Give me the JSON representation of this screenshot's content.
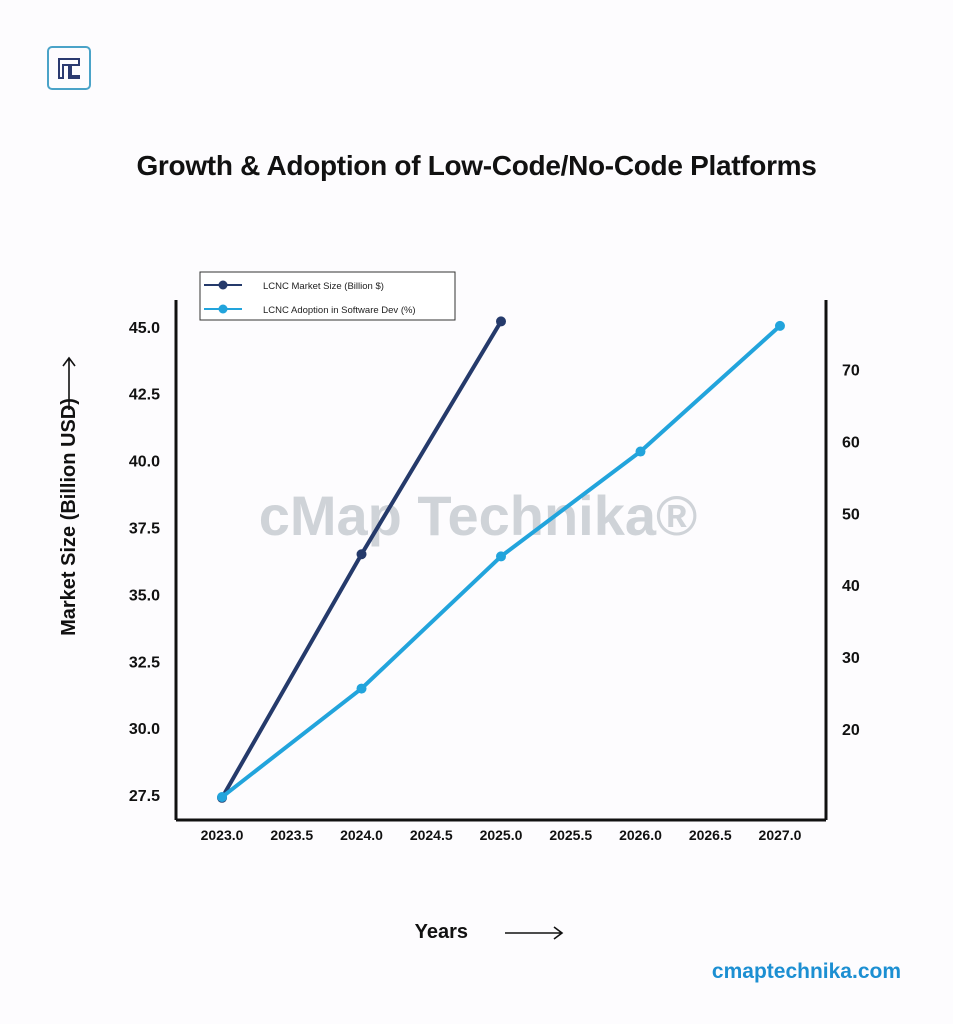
{
  "title": "Growth & Adoption of Low-Code/No-Code Platforms",
  "footer": "cmaptechnika.com",
  "watermark": "cMap Technika®",
  "logo_icon": "t-logo-icon",
  "chart_data": {
    "type": "line",
    "title": "Growth & Adoption of Low-Code/No-Code Platforms",
    "xlabel": "Years",
    "ylabel": "Market Size (Billion USD)",
    "y2label": "",
    "xlim": [
      2022.67,
      2027.33
    ],
    "ylim": [
      26.57,
      46.0
    ],
    "y2lim": [
      7.3,
      79.7
    ],
    "xticks": [
      "2023.0",
      "2023.5",
      "2024.0",
      "2024.5",
      "2025.0",
      "2025.5",
      "2026.0",
      "2026.5",
      "2027.0"
    ],
    "yticks": [
      "27.5",
      "30.0",
      "32.5",
      "35.0",
      "37.5",
      "40.0",
      "42.5",
      "45.0"
    ],
    "y2ticks": [
      "20",
      "30",
      "40",
      "50",
      "60",
      "70"
    ],
    "grid": false,
    "legend_position": "top-left",
    "series": [
      {
        "name": "LCNC Market Size (Billion $)",
        "axis": "left",
        "color": "#253a6b",
        "x": [
          2023,
          2024,
          2025
        ],
        "values": [
          27.4,
          36.5,
          45.2
        ]
      },
      {
        "name": "LCNC Adoption in Software Dev (%)",
        "axis": "right",
        "color": "#22a4dc",
        "x": [
          2023,
          2024,
          2025,
          2026,
          2027
        ],
        "values": [
          10.5,
          25.6,
          44.0,
          58.6,
          76.1
        ]
      }
    ]
  }
}
